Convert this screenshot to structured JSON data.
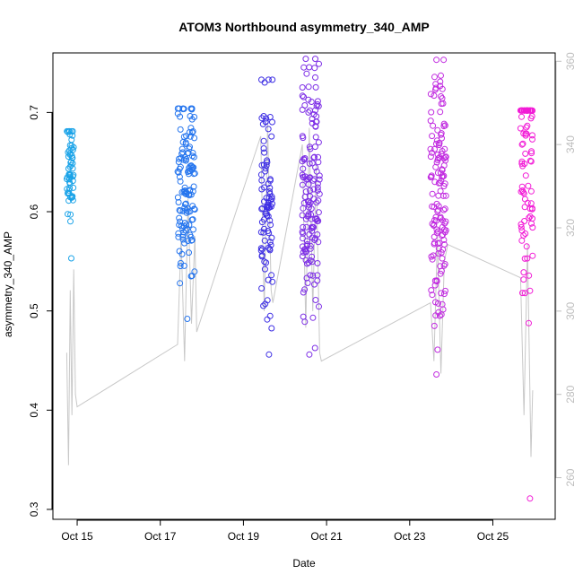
{
  "chart_data": {
    "type": "scatter",
    "title": "ATOM3 Northbound asymmetry_340_AMP",
    "xlabel": "Date",
    "ylabel": "asymmetry_340_AMP",
    "x_range_days": [
      "2023-10-14T10:00",
      "2023-10-26T12:00"
    ],
    "ylim": [
      0.29,
      0.76
    ],
    "y_ticks": [
      0.3,
      0.4,
      0.5,
      0.6,
      0.7
    ],
    "x_ticks": [
      {
        "label": "Oct 15",
        "date": "2023-10-15"
      },
      {
        "label": "Oct 17",
        "date": "2023-10-17"
      },
      {
        "label": "Oct 19",
        "date": "2023-10-19"
      },
      {
        "label": "Oct 21",
        "date": "2023-10-21"
      },
      {
        "label": "Oct 23",
        "date": "2023-10-23"
      },
      {
        "label": "Oct 25",
        "date": "2023-10-25"
      }
    ],
    "right_axis": {
      "ylim": [
        250,
        362
      ],
      "ticks": [
        260,
        280,
        300,
        320,
        340,
        360
      ],
      "color": "#bdbdbd"
    },
    "clusters": [
      {
        "start": "2023-10-14T18:00",
        "end": "2023-10-14T22:00",
        "y_min": 0.553,
        "y_max": 0.681,
        "center": 0.64,
        "color": "#1aa3e8",
        "n": 60
      },
      {
        "start": "2023-10-17T10:00",
        "end": "2023-10-17T20:00",
        "y_min": 0.492,
        "y_max": 0.704,
        "center": 0.625,
        "color": "#2575ee",
        "n": 130
      },
      {
        "start": "2023-10-19T10:00",
        "end": "2023-10-19T17:00",
        "y_min": 0.456,
        "y_max": 0.733,
        "center": 0.61,
        "color": "#3e2fe4",
        "n": 90
      },
      {
        "start": "2023-10-20T10:00",
        "end": "2023-10-20T20:00",
        "y_min": 0.456,
        "y_max": 0.754,
        "center": 0.62,
        "color": "#7d2ee6",
        "n": 150
      },
      {
        "start": "2023-10-23T12:00",
        "end": "2023-10-23T21:00",
        "y_min": 0.436,
        "y_max": 0.753,
        "center": 0.62,
        "color": "#c12be0",
        "n": 140
      },
      {
        "start": "2023-10-25T16:00",
        "end": "2023-10-25T23:00",
        "y_min": 0.311,
        "y_max": 0.702,
        "center": 0.635,
        "color": "#f21bd6",
        "n": 90
      }
    ],
    "line_series": {
      "color": "#c8c8c8",
      "points": [
        {
          "x": "2023-10-14T18:00",
          "y": 290
        },
        {
          "x": "2023-10-14T19:00",
          "y": 263
        },
        {
          "x": "2023-10-14T20:00",
          "y": 305
        },
        {
          "x": "2023-10-14T21:00",
          "y": 275
        },
        {
          "x": "2023-10-14T22:00",
          "y": 310
        },
        {
          "x": "2023-10-14T23:00",
          "y": 280
        },
        {
          "x": "2023-10-15T00:00",
          "y": 277
        },
        {
          "x": "2023-10-17T10:00",
          "y": 292
        },
        {
          "x": "2023-10-17T12:00",
          "y": 318
        },
        {
          "x": "2023-10-17T14:00",
          "y": 288
        },
        {
          "x": "2023-10-17T16:00",
          "y": 327
        },
        {
          "x": "2023-10-17T18:00",
          "y": 297
        },
        {
          "x": "2023-10-17T20:00",
          "y": 318
        },
        {
          "x": "2023-10-17T21:00",
          "y": 295
        },
        {
          "x": "2023-10-19T10:00",
          "y": 342
        },
        {
          "x": "2023-10-19T12:00",
          "y": 300
        },
        {
          "x": "2023-10-19T14:00",
          "y": 345
        },
        {
          "x": "2023-10-19T16:00",
          "y": 305
        },
        {
          "x": "2023-10-19T17:00",
          "y": 302
        },
        {
          "x": "2023-10-20T10:00",
          "y": 340
        },
        {
          "x": "2023-10-20T12:00",
          "y": 296
        },
        {
          "x": "2023-10-20T14:00",
          "y": 344
        },
        {
          "x": "2023-10-20T16:00",
          "y": 300
        },
        {
          "x": "2023-10-20T18:00",
          "y": 335
        },
        {
          "x": "2023-10-20T20:00",
          "y": 290
        },
        {
          "x": "2023-10-20T21:00",
          "y": 288
        },
        {
          "x": "2023-10-23T12:00",
          "y": 302
        },
        {
          "x": "2023-10-23T14:00",
          "y": 288
        },
        {
          "x": "2023-10-23T16:00",
          "y": 318
        },
        {
          "x": "2023-10-23T18:00",
          "y": 285
        },
        {
          "x": "2023-10-23T20:00",
          "y": 312
        },
        {
          "x": "2023-10-23T22:00",
          "y": 316
        },
        {
          "x": "2023-10-25T16:00",
          "y": 308
        },
        {
          "x": "2023-10-25T18:00",
          "y": 275
        },
        {
          "x": "2023-10-25T20:00",
          "y": 316
        },
        {
          "x": "2023-10-25T22:00",
          "y": 265
        },
        {
          "x": "2023-10-25T23:00",
          "y": 281
        }
      ]
    },
    "grid": false,
    "legend": "none"
  }
}
